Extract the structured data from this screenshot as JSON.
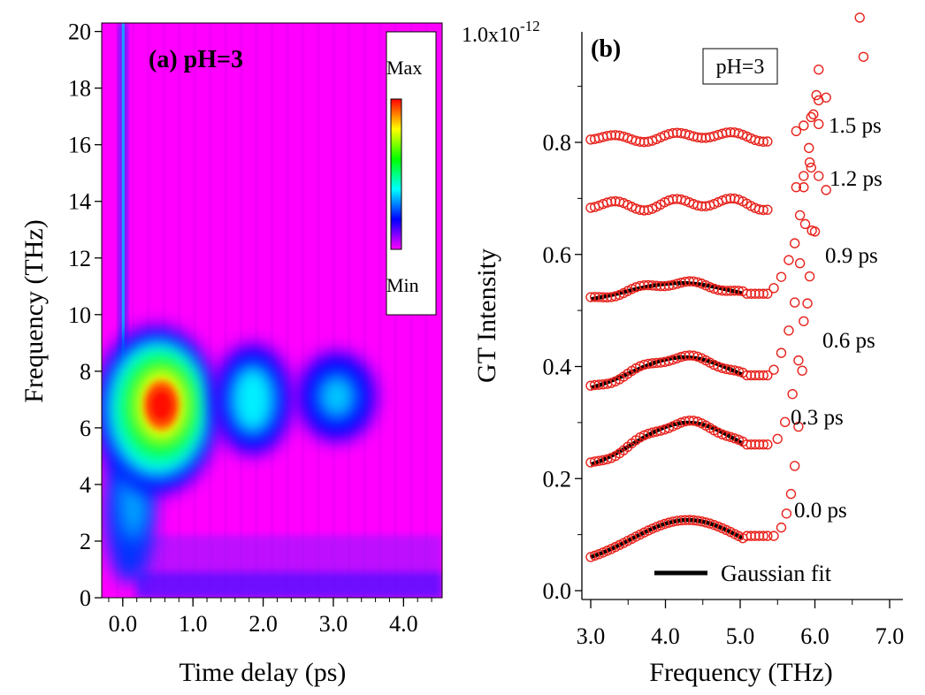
{
  "colors": {
    "marker": "#e8221c",
    "fit": "#000000",
    "background_low": "#ff00ff",
    "colormap": [
      "#ff00ff",
      "#0000ff",
      "#00ffff",
      "#00ff00",
      "#ffff00",
      "#ff0000"
    ]
  },
  "chart_data": [
    {
      "type": "heatmap",
      "panel_label": "(a) pH=3",
      "xlabel": "Time delay (ps)",
      "ylabel": "Frequency (THz)",
      "xlim": [
        -0.3,
        4.55
      ],
      "ylim": [
        0,
        20.3
      ],
      "xticks": [
        0.0,
        1.0,
        2.0,
        3.0,
        4.0
      ],
      "xtick_labels": [
        "0.0",
        "1.0",
        "2.0",
        "3.0",
        "4.0"
      ],
      "yticks": [
        0,
        2,
        4,
        6,
        8,
        10,
        12,
        14,
        16,
        18,
        20
      ],
      "ytick_labels": [
        "0",
        "2",
        "4",
        "6",
        "8",
        "10",
        "12",
        "14",
        "16",
        "18",
        "20"
      ],
      "colorbar": {
        "max_label": "Max",
        "min_label": "Min"
      },
      "features": [
        {
          "name": "main-peak",
          "time_ps": 0.55,
          "freq_thz": 6.8,
          "intensity": 1.0
        },
        {
          "name": "second-peak",
          "time_ps": 1.85,
          "freq_thz": 7.0,
          "intensity": 0.45
        },
        {
          "name": "third-peak",
          "time_ps": 3.05,
          "freq_thz": 7.1,
          "intensity": 0.3
        },
        {
          "name": "low-freq-tail",
          "time_ps": 0.1,
          "freq_thz": 4.0,
          "intensity": 0.45
        },
        {
          "name": "zero-delay-spike",
          "time_ps": 0.0,
          "freq_thz": 14.0,
          "intensity": 0.3
        }
      ]
    },
    {
      "type": "scatter",
      "panel_label": "(b)",
      "legend_box": "pH=3",
      "xlabel": "Frequency (THz)",
      "ylabel": "GT Intensity",
      "y_exponent_label": "1.0x10",
      "y_exponent_power": "-12",
      "xlim": [
        2.93,
        7.3
      ],
      "ylim": [
        -0.02,
        1.0
      ],
      "xticks": [
        3.0,
        4.0,
        5.0,
        6.0,
        7.0
      ],
      "xtick_labels": [
        "3.0",
        "4.0",
        "5.0",
        "6.0",
        "7.0"
      ],
      "yticks": [
        0.0,
        0.2,
        0.4,
        0.6,
        0.8
      ],
      "ytick_labels": [
        "0.0",
        "0.2",
        "0.4",
        "0.6",
        "0.8"
      ],
      "legend": {
        "fit_label": "Gaussian fit",
        "placement": "bottom"
      },
      "series": [
        {
          "name": "0.0 ps",
          "offset": 0.06,
          "fit": true,
          "fit_params": {
            "amplitude": 0.085,
            "center": 4.3,
            "sigma": 0.75
          }
        },
        {
          "name": "0.3 ps",
          "offset": 0.225,
          "fit": true,
          "fit_params": {
            "amplitude": 0.093,
            "center": 4.3,
            "sigma": 0.72
          }
        },
        {
          "name": "0.6 ps",
          "offset": 0.362,
          "fit": true,
          "fit_params": {
            "amplitude": 0.07,
            "center": 4.25,
            "sigma": 0.72
          }
        },
        {
          "name": "0.9 ps",
          "offset": 0.52,
          "fit": true,
          "fit_params": {
            "amplitude": 0.04,
            "center": 4.2,
            "sigma": 0.75
          }
        },
        {
          "name": "1.2 ps",
          "offset": 0.69,
          "fit": false
        },
        {
          "name": "1.5 ps",
          "offset": 0.81,
          "fit": false
        }
      ]
    }
  ]
}
